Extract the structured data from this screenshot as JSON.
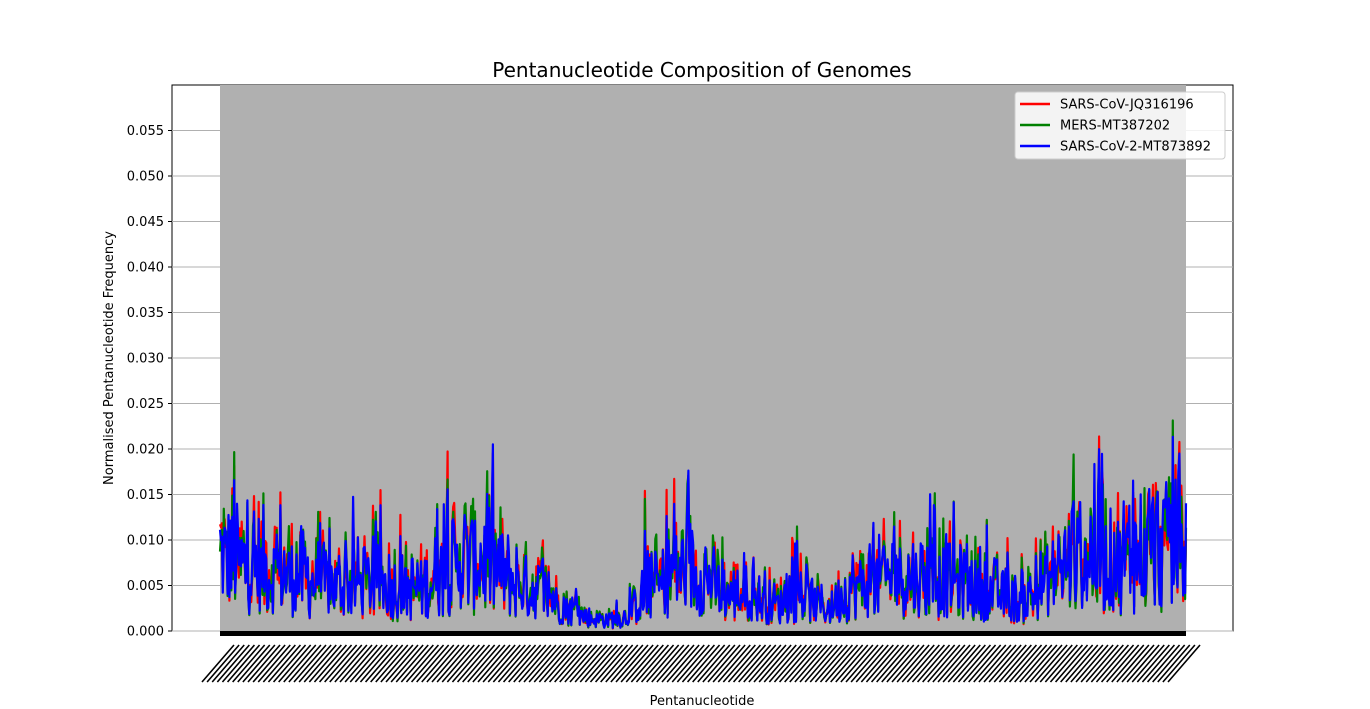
{
  "chart_data": {
    "type": "line",
    "title": "Pentanucleotide Composition of Genomes",
    "xlabel": "Pentanucleotide",
    "ylabel": "Normalised Pentanucleotide Frequency",
    "ylim": [
      0,
      0.06
    ],
    "yticks": [
      "0.000",
      "0.005",
      "0.010",
      "0.015",
      "0.020",
      "0.025",
      "0.030",
      "0.035",
      "0.040",
      "0.045",
      "0.050",
      "0.055"
    ],
    "x_count": 1024,
    "grid": true,
    "legend_position": "top-right",
    "series": [
      {
        "name": "SARS-CoV-JQ316196",
        "color": "#ff0000"
      },
      {
        "name": "MERS-MT387202",
        "color": "#008000"
      },
      {
        "name": "SARS-CoV-2-MT873892",
        "color": "#0000ff"
      }
    ],
    "profile": {
      "x_fraction": [
        0,
        0.02,
        0.05,
        0.08,
        0.12,
        0.16,
        0.2,
        0.22,
        0.25,
        0.28,
        0.3,
        0.33,
        0.35,
        0.38,
        0.4,
        0.42,
        0.44,
        0.47,
        0.5,
        0.52,
        0.55,
        0.58,
        0.6,
        0.63,
        0.66,
        0.69,
        0.72,
        0.75,
        0.78,
        0.8,
        0.83,
        0.86,
        0.88,
        0.9,
        0.93,
        0.96,
        1
      ],
      "mean_value": [
        0.0085,
        0.0075,
        0.007,
        0.006,
        0.005,
        0.0055,
        0.0045,
        0.0055,
        0.008,
        0.0075,
        0.0055,
        0.0045,
        0.003,
        0.0015,
        0.0012,
        0.0015,
        0.004,
        0.0065,
        0.0065,
        0.004,
        0.004,
        0.003,
        0.004,
        0.0025,
        0.005,
        0.006,
        0.006,
        0.006,
        0.005,
        0.0045,
        0.003,
        0.006,
        0.0075,
        0.0085,
        0.008,
        0.0085,
        0.0095
      ]
    },
    "peaks": [
      {
        "x_fraction": 0.015,
        "value": 0.016
      },
      {
        "x_fraction": 0.063,
        "value": 0.0145
      },
      {
        "x_fraction": 0.225,
        "value": 0.0155
      },
      {
        "x_fraction": 0.235,
        "value": 0.0132
      },
      {
        "x_fraction": 0.44,
        "value": 0.0125
      },
      {
        "x_fraction": 0.47,
        "value": 0.014
      },
      {
        "x_fraction": 0.735,
        "value": 0.0153
      },
      {
        "x_fraction": 0.76,
        "value": 0.014
      },
      {
        "x_fraction": 0.905,
        "value": 0.0165
      },
      {
        "x_fraction": 0.91,
        "value": 0.0175
      },
      {
        "x_fraction": 0.945,
        "value": 0.0183
      },
      {
        "x_fraction": 0.982,
        "value": 0.017
      }
    ]
  }
}
